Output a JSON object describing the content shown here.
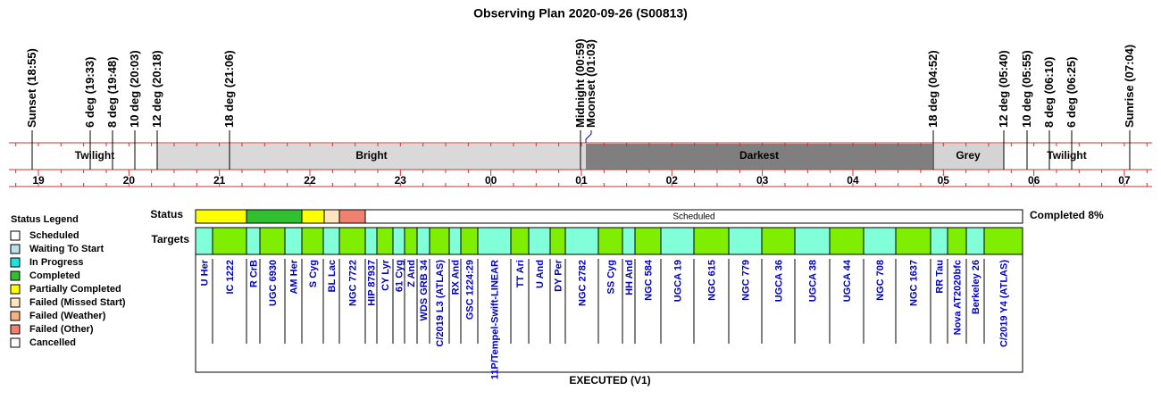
{
  "title": "Observing Plan 2020-09-26 (S00813)",
  "events": [
    "Sunset (18:55)",
    "6 deg (19:33)",
    "8 deg (19:48)",
    "10 deg (20:03)",
    "12 deg (20:18)",
    "18 deg (21:06)",
    "Midnight (00:59)",
    "Moonset (01:03)",
    "18 deg (04:52)",
    "12 deg (05:40)",
    "10 deg (05:55)",
    "8 deg (06:10)",
    "6 deg (06:25)",
    "Sunrise (07:04)"
  ],
  "bands": [
    "Twilight",
    "Bright",
    "Darkest",
    "Grey",
    "Twilight"
  ],
  "hours": [
    "19",
    "20",
    "21",
    "22",
    "23",
    "00",
    "01",
    "02",
    "03",
    "04",
    "05",
    "06",
    "07"
  ],
  "legend": {
    "title": "Status Legend",
    "items": [
      "Scheduled",
      "Waiting To Start",
      "In Progress",
      "Completed",
      "Partially Completed",
      "Failed (Missed Start)",
      "Failed (Weather)",
      "Failed (Other)",
      "Cancelled"
    ]
  },
  "status": {
    "label": "Status",
    "text": "Scheduled",
    "summary": "Completed 8%"
  },
  "targets": {
    "label": "Targets",
    "names": [
      "U Her",
      "IC 1222",
      "R CrB",
      "UGC 6930",
      "AM Her",
      "S Cyg",
      "BL Lac",
      "NGC 7722",
      "HIP 87937",
      "CY Lyr",
      "61 Cyg",
      "Z And",
      "WDS GRB 34",
      "C/2019 L3 (ATLAS)",
      "RX And",
      "GSC 1224:29",
      "11P/Tempel-Swift-LINEAR",
      "TT Ari",
      "U And",
      "DY Per",
      "NGC 2782",
      "SS Cyg",
      "HH And",
      "NGC 584",
      "UGCA 19",
      "NGC 615",
      "NGC 779",
      "UGCA 36",
      "UGCA 38",
      "UGCA 44",
      "NGC 708",
      "NGC 1637",
      "RR Tau",
      "Nova AT2020bfc",
      "Berkeley 26",
      "C/2019 Y4 (ATLAS)"
    ]
  },
  "footer": "EXECUTED (V1)"
}
